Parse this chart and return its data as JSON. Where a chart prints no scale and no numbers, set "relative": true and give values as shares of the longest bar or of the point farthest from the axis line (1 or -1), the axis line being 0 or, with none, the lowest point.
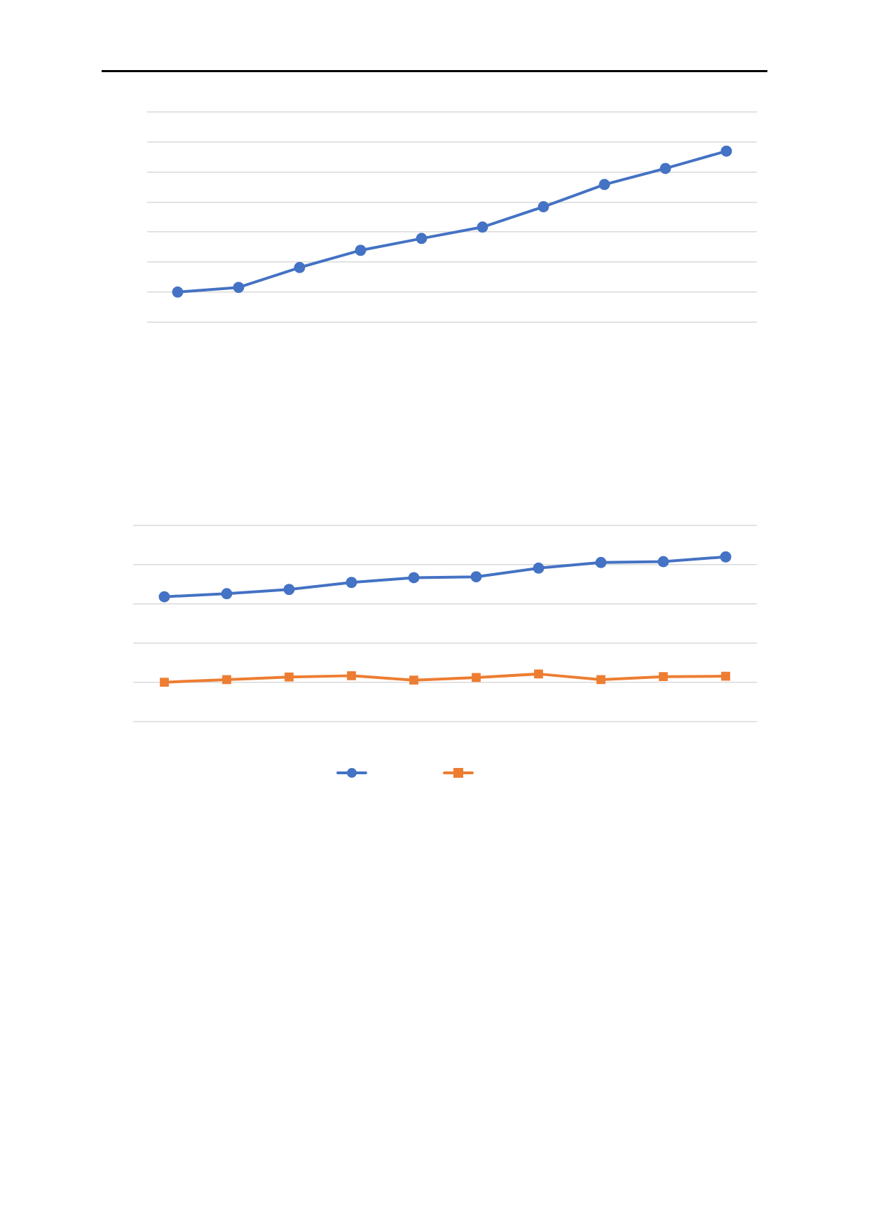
{
  "chart_data": [
    {
      "type": "line",
      "relative": true,
      "categories": [
        null,
        null,
        null,
        null,
        null,
        null,
        null,
        null,
        null,
        null
      ],
      "grid": "y",
      "marker": "circle",
      "legend": false,
      "series": [
        {
          "color": "#4472c4",
          "values": [
            0,
            0.033,
            0.174,
            0.296,
            0.38,
            0.461,
            0.605,
            0.763,
            0.877,
            1
          ]
        }
      ]
    },
    {
      "type": "line",
      "relative": true,
      "categories": [
        null,
        null,
        null,
        null,
        null,
        null,
        null,
        null,
        null,
        null
      ],
      "grid": "y",
      "marker": "circle",
      "series": [
        {
          "color": "#4472c4",
          "values": [
            0.682,
            0.706,
            0.74,
            0.796,
            0.834,
            0.841,
            0.91,
            0.955,
            0.962,
            1
          ]
        },
        {
          "color": "#ed7d31",
          "marker": "square",
          "values": [
            0,
            0.021,
            0.042,
            0.052,
            0.017,
            0.038,
            0.066,
            0.021,
            0.045,
            0.048
          ]
        }
      ]
    }
  ]
}
